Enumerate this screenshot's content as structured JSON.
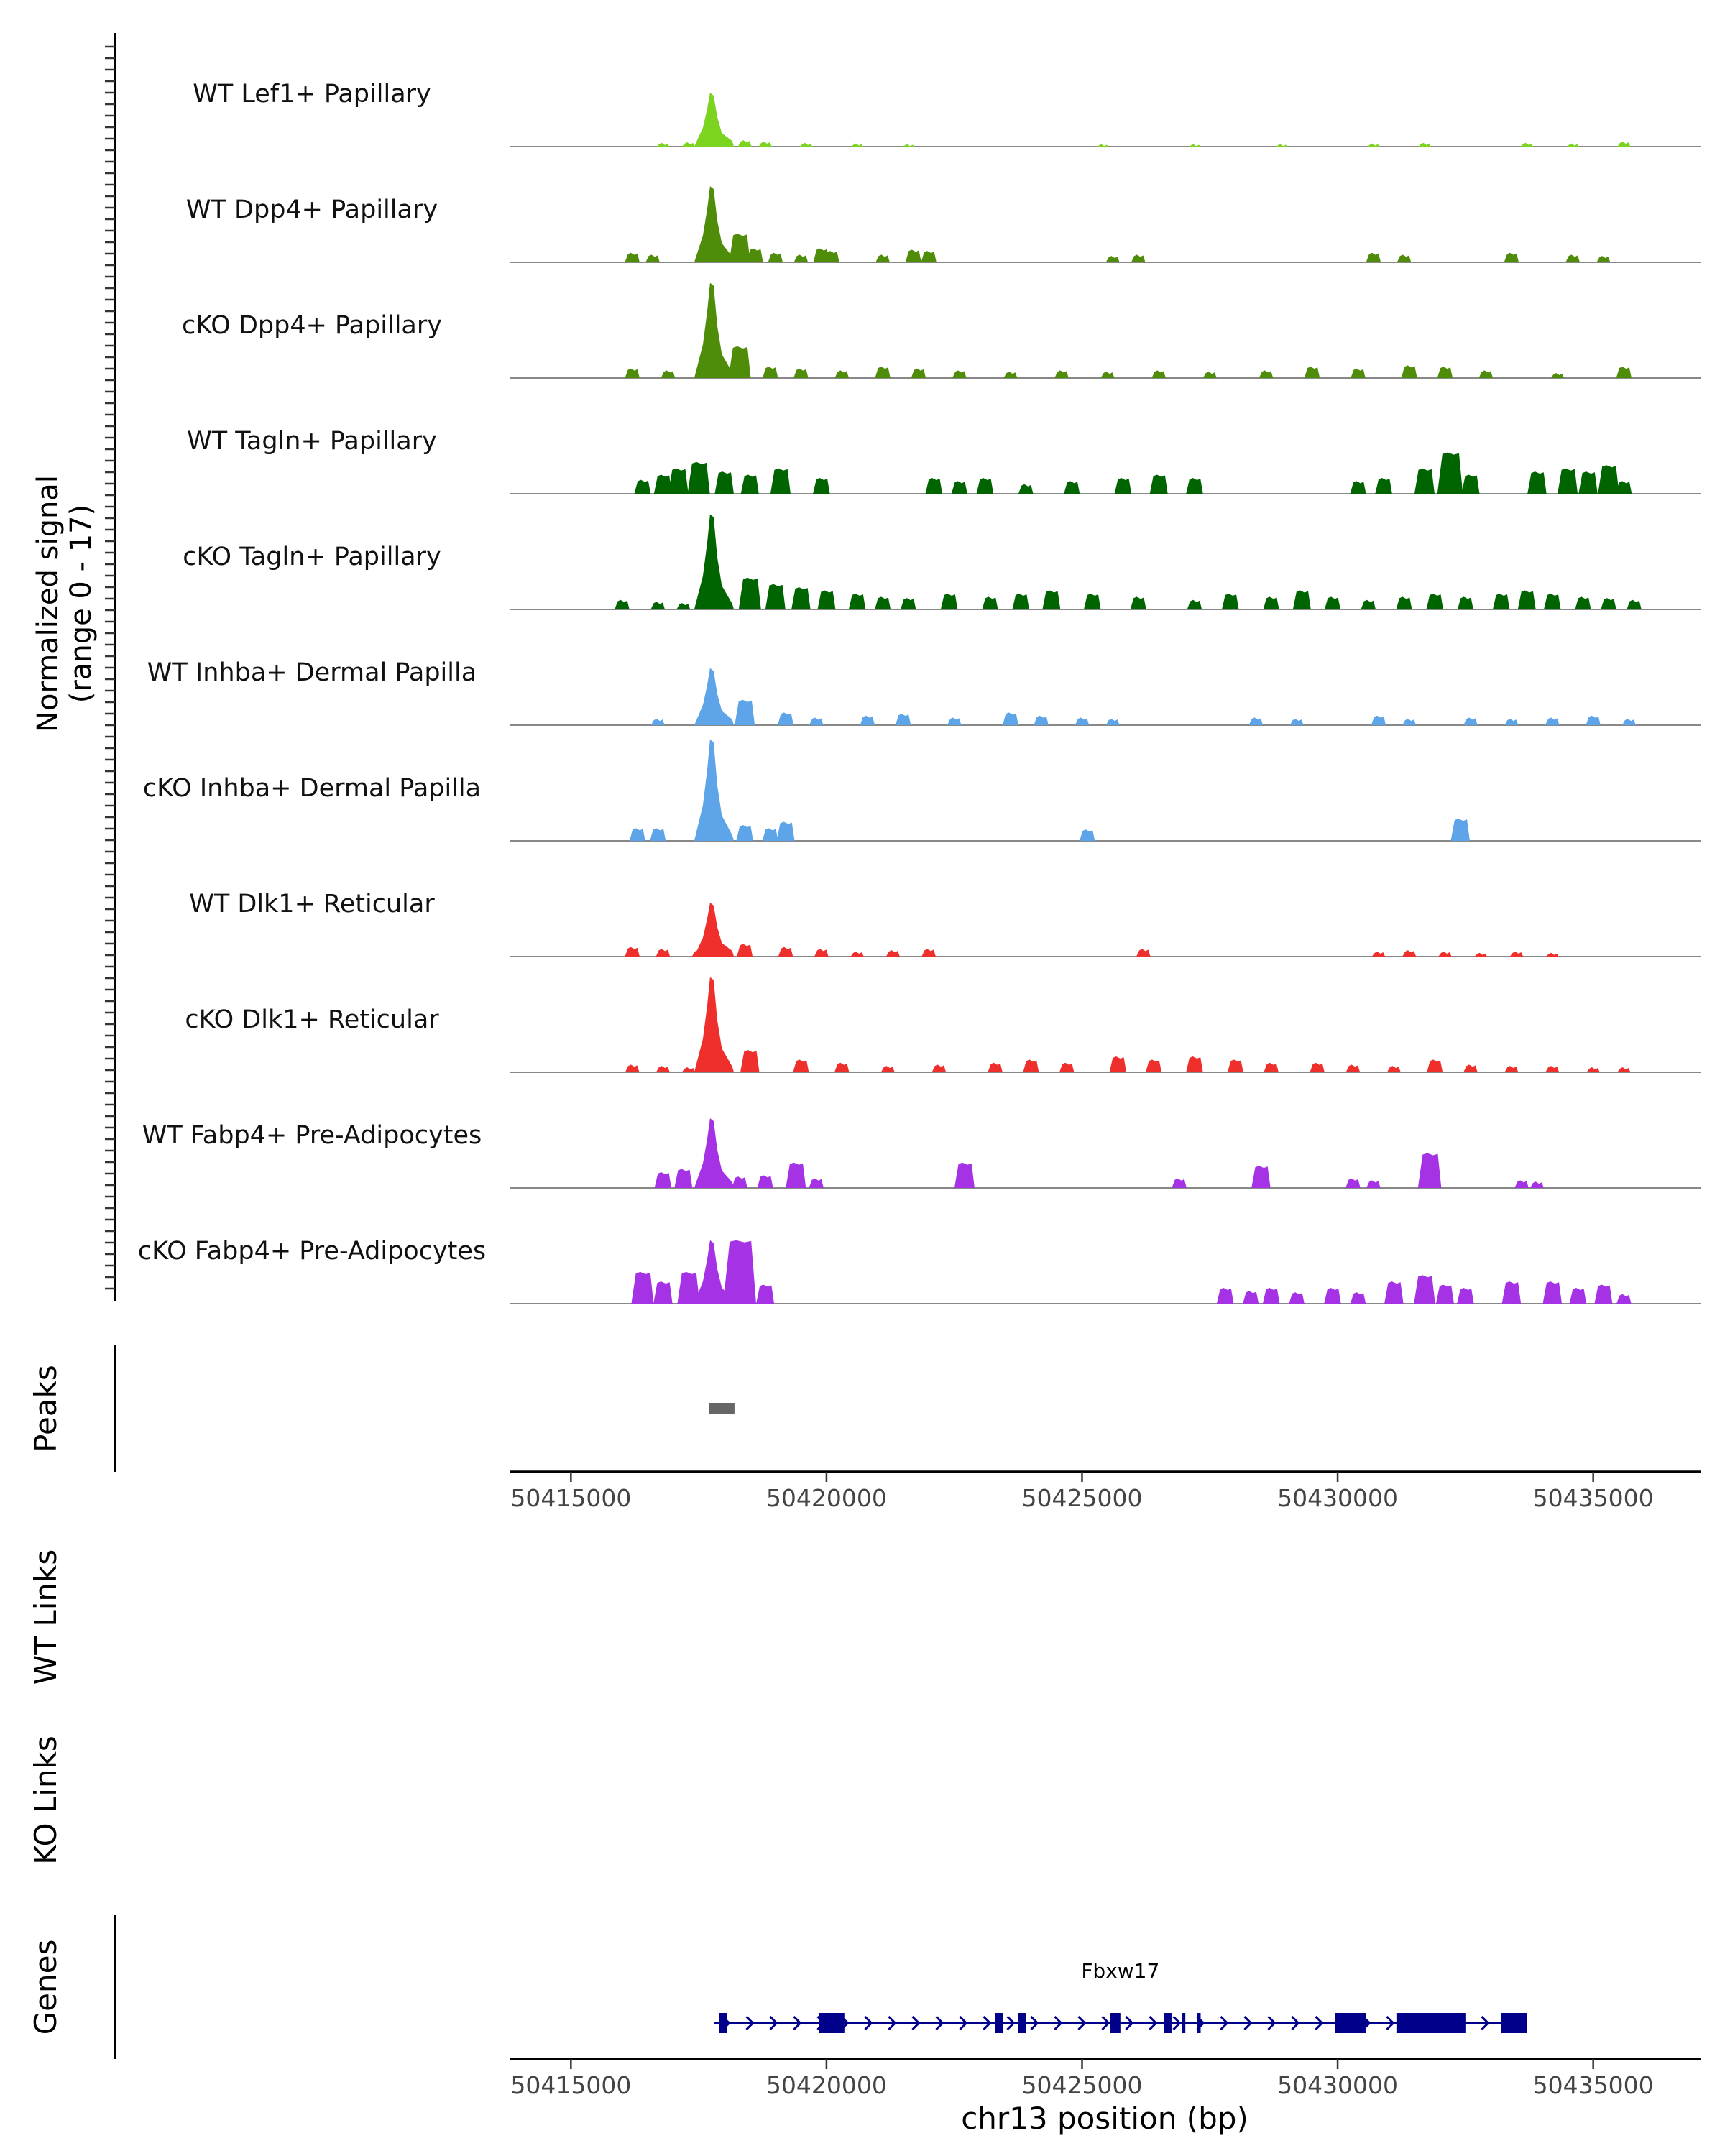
{
  "chart_data": {
    "type": "area",
    "title": "",
    "chromosome": "chr13",
    "xlabel": "chr13 position (bp)",
    "xlim": [
      50413800,
      50437100
    ],
    "x_ticks": [
      50415000,
      50420000,
      50425000,
      50430000,
      50435000
    ],
    "x_tick_labels": [
      "50415000",
      "50420000",
      "50425000",
      "50430000",
      "50435000"
    ],
    "signal_ylabel_line1": "Normalized signal",
    "signal_ylabel_line2": "(range 0 - 17)",
    "ylim": [
      0,
      17
    ],
    "series": [
      {
        "name": "WT Lef1+ Papillary",
        "color": "#7CD320",
        "main_peak": 8.5,
        "minor_peaks": [
          [
            50416800,
            0.6
          ],
          [
            50417300,
            0.7
          ],
          [
            50418400,
            1.0
          ],
          [
            50418800,
            0.8
          ],
          [
            50419600,
            0.6
          ],
          [
            50420600,
            0.5
          ],
          [
            50421600,
            0.4
          ],
          [
            50425400,
            0.4
          ],
          [
            50427200,
            0.4
          ],
          [
            50428900,
            0.4
          ],
          [
            50430700,
            0.5
          ],
          [
            50431700,
            0.6
          ],
          [
            50433700,
            0.6
          ],
          [
            50434600,
            0.5
          ],
          [
            50435600,
            0.8
          ]
        ]
      },
      {
        "name": "WT Dpp4+ Papillary",
        "color": "#4F8C0A",
        "main_peak": 12,
        "minor_peaks": [
          [
            50416200,
            1.5
          ],
          [
            50416600,
            1.2
          ],
          [
            50418300,
            4.5
          ],
          [
            50418600,
            2.2
          ],
          [
            50419000,
            1.5
          ],
          [
            50419500,
            1.2
          ],
          [
            50419900,
            2.2
          ],
          [
            50420100,
            1.8
          ],
          [
            50421100,
            1.2
          ],
          [
            50421700,
            2.0
          ],
          [
            50422000,
            1.8
          ],
          [
            50425600,
            1.0
          ],
          [
            50426100,
            1.2
          ],
          [
            50430700,
            1.5
          ],
          [
            50431300,
            1.2
          ],
          [
            50433400,
            1.5
          ],
          [
            50434600,
            1.2
          ],
          [
            50435200,
            1.0
          ]
        ]
      },
      {
        "name": "cKO Dpp4+ Papillary",
        "color": "#4F8C0A",
        "main_peak": 15,
        "minor_peaks": [
          [
            50416200,
            1.5
          ],
          [
            50416900,
            1.2
          ],
          [
            50418300,
            5.0
          ],
          [
            50418900,
            1.8
          ],
          [
            50419500,
            1.5
          ],
          [
            50420300,
            1.2
          ],
          [
            50421100,
            1.8
          ],
          [
            50421800,
            1.5
          ],
          [
            50422600,
            1.2
          ],
          [
            50423600,
            1.0
          ],
          [
            50424600,
            1.2
          ],
          [
            50425500,
            1.0
          ],
          [
            50426500,
            1.2
          ],
          [
            50427500,
            1.0
          ],
          [
            50428600,
            1.2
          ],
          [
            50429500,
            1.8
          ],
          [
            50430400,
            1.5
          ],
          [
            50431400,
            2.0
          ],
          [
            50432100,
            1.8
          ],
          [
            50432900,
            1.2
          ],
          [
            50434300,
            0.8
          ],
          [
            50435600,
            1.8
          ]
        ]
      },
      {
        "name": "WT Tagln+ Papillary",
        "color": "#006400",
        "main_peak": 0,
        "minor_peaks": [
          [
            50416400,
            2.2
          ],
          [
            50416800,
            3.0
          ],
          [
            50417100,
            4.0
          ],
          [
            50417500,
            5.0
          ],
          [
            50418000,
            3.5
          ],
          [
            50418500,
            3.0
          ],
          [
            50419100,
            4.0
          ],
          [
            50419900,
            2.5
          ],
          [
            50422100,
            2.5
          ],
          [
            50422600,
            2.0
          ],
          [
            50423100,
            2.5
          ],
          [
            50423900,
            1.5
          ],
          [
            50424800,
            2.0
          ],
          [
            50425800,
            2.5
          ],
          [
            50426500,
            3.0
          ],
          [
            50427200,
            2.5
          ],
          [
            50430400,
            2.0
          ],
          [
            50430900,
            2.5
          ],
          [
            50431700,
            4.0
          ],
          [
            50432200,
            6.5
          ],
          [
            50432600,
            3.0
          ],
          [
            50433900,
            3.5
          ],
          [
            50434500,
            4.0
          ],
          [
            50434900,
            3.5
          ],
          [
            50435300,
            4.5
          ],
          [
            50435600,
            2.0
          ]
        ]
      },
      {
        "name": "cKO Tagln+ Papillary",
        "color": "#006400",
        "main_peak": 15,
        "minor_peaks": [
          [
            50416000,
            1.5
          ],
          [
            50416700,
            1.2
          ],
          [
            50417200,
            1.0
          ],
          [
            50418500,
            5.0
          ],
          [
            50419000,
            4.0
          ],
          [
            50419500,
            3.5
          ],
          [
            50420000,
            3.0
          ],
          [
            50420600,
            2.5
          ],
          [
            50421100,
            2.0
          ],
          [
            50421600,
            1.8
          ],
          [
            50422400,
            2.5
          ],
          [
            50423200,
            2.0
          ],
          [
            50423800,
            2.5
          ],
          [
            50424400,
            3.0
          ],
          [
            50425200,
            2.5
          ],
          [
            50426100,
            2.0
          ],
          [
            50427200,
            1.5
          ],
          [
            50427900,
            2.5
          ],
          [
            50428700,
            2.0
          ],
          [
            50429300,
            3.0
          ],
          [
            50429900,
            2.0
          ],
          [
            50430600,
            1.5
          ],
          [
            50431300,
            2.0
          ],
          [
            50431900,
            2.5
          ],
          [
            50432500,
            2.0
          ],
          [
            50433200,
            2.5
          ],
          [
            50433700,
            3.0
          ],
          [
            50434200,
            2.5
          ],
          [
            50434800,
            2.0
          ],
          [
            50435300,
            1.8
          ],
          [
            50435800,
            1.5
          ]
        ]
      },
      {
        "name": "WT Inhba+ Dermal Papilla",
        "color": "#5DA5E8",
        "main_peak": 9,
        "minor_peaks": [
          [
            50416700,
            1.0
          ],
          [
            50418400,
            4.0
          ],
          [
            50419200,
            2.0
          ],
          [
            50419800,
            1.2
          ],
          [
            50420800,
            1.5
          ],
          [
            50421500,
            1.8
          ],
          [
            50422500,
            1.2
          ],
          [
            50423600,
            2.0
          ],
          [
            50424200,
            1.5
          ],
          [
            50425000,
            1.2
          ],
          [
            50425600,
            1.0
          ],
          [
            50428400,
            1.2
          ],
          [
            50429200,
            1.0
          ],
          [
            50430800,
            1.5
          ],
          [
            50431400,
            1.0
          ],
          [
            50432600,
            1.2
          ],
          [
            50433400,
            1.0
          ],
          [
            50434200,
            1.2
          ],
          [
            50435000,
            1.5
          ],
          [
            50435700,
            1.0
          ]
        ]
      },
      {
        "name": "cKO Inhba+ Dermal Papilla",
        "color": "#5DA5E8",
        "main_peak": 16,
        "minor_peaks": [
          [
            50416300,
            2.0
          ],
          [
            50416700,
            2.0
          ],
          [
            50418400,
            2.5
          ],
          [
            50418900,
            2.0
          ],
          [
            50419200,
            3.0
          ],
          [
            50425100,
            1.8
          ],
          [
            50432400,
            3.5
          ]
        ]
      },
      {
        "name": "WT Dlk1+ Reticular",
        "color": "#EE2F2C",
        "main_peak": 8.5,
        "minor_peaks": [
          [
            50416200,
            1.5
          ],
          [
            50416800,
            1.2
          ],
          [
            50417500,
            1.0
          ],
          [
            50418400,
            2.0
          ],
          [
            50419200,
            1.5
          ],
          [
            50419900,
            1.2
          ],
          [
            50420600,
            0.8
          ],
          [
            50421300,
            1.0
          ],
          [
            50422000,
            1.2
          ],
          [
            50426200,
            1.2
          ],
          [
            50430800,
            0.8
          ],
          [
            50431400,
            1.0
          ],
          [
            50432100,
            0.8
          ],
          [
            50432800,
            0.6
          ],
          [
            50433500,
            0.8
          ],
          [
            50434200,
            0.6
          ]
        ]
      },
      {
        "name": "cKO Dlk1+ Reticular",
        "color": "#EE2F2C",
        "main_peak": 15,
        "minor_peaks": [
          [
            50416200,
            1.2
          ],
          [
            50416800,
            1.0
          ],
          [
            50417300,
            0.8
          ],
          [
            50418500,
            3.5
          ],
          [
            50419500,
            2.0
          ],
          [
            50420300,
            1.5
          ],
          [
            50421200,
            1.0
          ],
          [
            50422200,
            1.2
          ],
          [
            50423300,
            1.5
          ],
          [
            50424000,
            2.0
          ],
          [
            50424700,
            1.5
          ],
          [
            50425700,
            2.5
          ],
          [
            50426400,
            2.0
          ],
          [
            50427200,
            2.5
          ],
          [
            50428000,
            2.0
          ],
          [
            50428700,
            1.5
          ],
          [
            50429600,
            1.5
          ],
          [
            50430300,
            1.2
          ],
          [
            50431100,
            1.0
          ],
          [
            50431900,
            2.0
          ],
          [
            50432600,
            1.2
          ],
          [
            50433400,
            1.0
          ],
          [
            50434200,
            1.0
          ],
          [
            50435000,
            0.8
          ],
          [
            50435600,
            0.8
          ]
        ]
      },
      {
        "name": "WT Fabp4+ Pre-Adipocytes",
        "color": "#A632E6",
        "main_peak": 11,
        "minor_peaks": [
          [
            50416800,
            2.5
          ],
          [
            50417200,
            3.0
          ],
          [
            50418300,
            1.8
          ],
          [
            50418800,
            2.0
          ],
          [
            50419400,
            4.0
          ],
          [
            50419800,
            1.5
          ],
          [
            50422700,
            4.0
          ],
          [
            50426900,
            1.5
          ],
          [
            50428500,
            3.5
          ],
          [
            50430300,
            1.5
          ],
          [
            50430700,
            1.2
          ],
          [
            50431800,
            5.5
          ],
          [
            50433600,
            1.2
          ],
          [
            50433900,
            1.0
          ]
        ]
      },
      {
        "name": "cKO Fabp4+ Pre-Adipocytes",
        "color": "#A632E6",
        "main_peak": 10,
        "minor_peaks": [
          [
            50416400,
            5.0
          ],
          [
            50416800,
            3.5
          ],
          [
            50417300,
            5.0
          ],
          [
            50418300,
            10.0
          ],
          [
            50418800,
            3.0
          ],
          [
            50427800,
            2.5
          ],
          [
            50428300,
            2.0
          ],
          [
            50428700,
            2.5
          ],
          [
            50429200,
            1.8
          ],
          [
            50429900,
            2.5
          ],
          [
            50430400,
            1.8
          ],
          [
            50431100,
            3.5
          ],
          [
            50431700,
            4.5
          ],
          [
            50432100,
            3.0
          ],
          [
            50432500,
            2.5
          ],
          [
            50433400,
            3.5
          ],
          [
            50434200,
            3.5
          ],
          [
            50434700,
            2.5
          ],
          [
            50435200,
            3.0
          ],
          [
            50435600,
            1.5
          ]
        ]
      }
    ],
    "peaks_label": "Peaks",
    "peaks": [
      [
        50417700,
        50418200
      ]
    ],
    "wt_links_label": "WT Links",
    "ko_links_label": "KO Links",
    "genes_label": "Genes",
    "gene": {
      "name": "Fbxw17",
      "start": 50417800,
      "end": 50433700,
      "strand": "+",
      "exons": [
        [
          50417900,
          50418050
        ],
        [
          50419850,
          50420350
        ],
        [
          50423300,
          50423450
        ],
        [
          50423750,
          50423900
        ],
        [
          50425550,
          50425750
        ],
        [
          50426600,
          50426750
        ],
        [
          50426950,
          50427000
        ],
        [
          50427250,
          50427300
        ],
        [
          50429950,
          50430550
        ],
        [
          50431150,
          50431900
        ],
        [
          50431900,
          50432500
        ],
        [
          50433200,
          50433700
        ]
      ]
    },
    "annotations": []
  }
}
